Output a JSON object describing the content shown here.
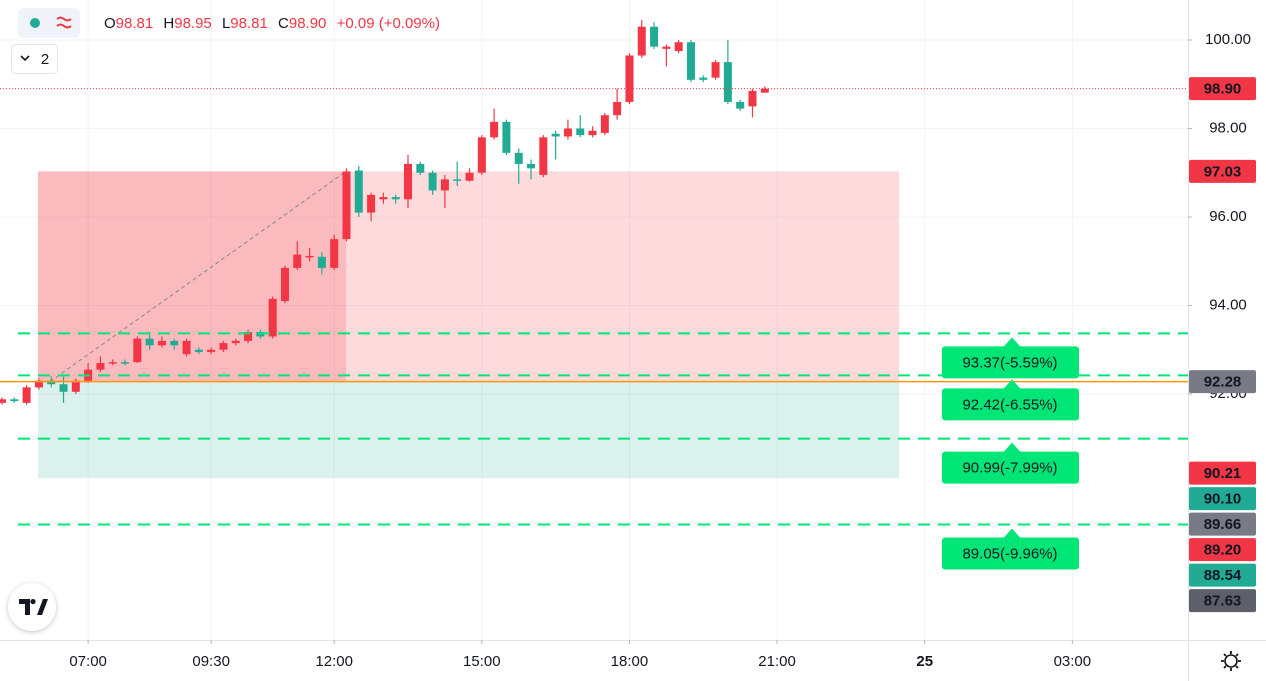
{
  "chart_data": {
    "type": "candlestick",
    "legend": {
      "o_label": "O",
      "o": "98.81",
      "h_label": "H",
      "h": "98.95",
      "l_label": "L",
      "l": "98.81",
      "c_label": "C",
      "c": "98.90",
      "change": "+0.09 (+0.09%)"
    },
    "badge": "2",
    "up_color": "#f23645",
    "down_color": "#22ab94",
    "open": [
      91.8,
      91.88,
      91.8,
      92.15,
      92.3,
      92.22,
      92.05,
      92.3,
      92.55,
      92.7,
      92.72,
      92.72,
      93.25,
      93.1,
      93.2,
      92.9,
      93.0,
      92.95,
      93.0,
      93.15,
      93.2,
      93.4,
      93.3,
      94.1,
      94.85,
      95.1,
      95.1,
      94.85,
      95.5,
      97.05,
      96.1,
      96.4,
      96.45,
      96.4,
      97.2,
      97.0,
      96.6,
      96.85,
      96.82,
      97.0,
      97.8,
      98.15,
      97.45,
      97.2,
      96.95,
      97.88,
      97.82,
      98.0,
      97.85,
      97.9,
      98.3,
      98.6,
      99.65,
      100.3,
      99.8,
      99.75,
      99.95,
      99.15,
      99.15,
      99.5,
      98.6,
      98.5,
      98.81
    ],
    "high": [
      91.92,
      91.92,
      92.2,
      92.35,
      92.4,
      92.4,
      92.35,
      92.7,
      92.85,
      92.78,
      92.78,
      93.3,
      93.4,
      93.3,
      93.25,
      93.25,
      93.05,
      93.05,
      93.2,
      93.25,
      93.45,
      93.45,
      94.2,
      94.9,
      95.45,
      95.3,
      95.2,
      95.6,
      97.1,
      97.15,
      96.55,
      96.55,
      96.5,
      97.4,
      97.25,
      97.05,
      96.95,
      97.25,
      97.1,
      97.85,
      98.45,
      98.2,
      97.55,
      97.3,
      97.85,
      97.95,
      98.2,
      98.3,
      98.05,
      98.35,
      98.9,
      99.7,
      100.45,
      100.4,
      99.9,
      100.0,
      100.0,
      99.2,
      99.55,
      100.0,
      98.65,
      98.9,
      98.95
    ],
    "low": [
      91.76,
      91.8,
      91.76,
      92.1,
      92.15,
      91.8,
      92.0,
      92.25,
      92.5,
      92.65,
      92.65,
      92.7,
      93.0,
      93.05,
      93.0,
      92.85,
      92.9,
      92.9,
      92.95,
      93.1,
      93.15,
      93.25,
      93.25,
      94.05,
      94.8,
      95.0,
      94.7,
      94.8,
      95.45,
      96.0,
      95.9,
      96.3,
      96.3,
      96.2,
      96.95,
      96.5,
      96.2,
      96.7,
      96.8,
      96.95,
      97.75,
      97.4,
      96.75,
      96.85,
      96.9,
      97.3,
      97.75,
      97.8,
      97.8,
      97.85,
      98.2,
      98.55,
      99.6,
      99.8,
      99.4,
      99.7,
      99.05,
      99.05,
      99.1,
      98.55,
      98.4,
      98.25,
      98.81
    ],
    "close": [
      91.88,
      91.84,
      92.15,
      92.3,
      92.22,
      92.05,
      92.3,
      92.55,
      92.7,
      92.72,
      92.7,
      93.25,
      93.1,
      93.2,
      93.1,
      93.2,
      92.95,
      93.0,
      93.15,
      93.2,
      93.4,
      93.3,
      94.15,
      94.85,
      95.15,
      95.12,
      94.85,
      95.5,
      97.03,
      96.1,
      96.5,
      96.45,
      96.4,
      97.2,
      97.0,
      96.6,
      96.85,
      96.82,
      97.0,
      97.8,
      98.15,
      97.45,
      97.2,
      97.1,
      97.8,
      97.82,
      98.0,
      97.85,
      97.95,
      98.3,
      98.6,
      99.65,
      100.3,
      99.85,
      99.85,
      99.95,
      99.1,
      99.1,
      99.5,
      98.6,
      98.45,
      98.85,
      98.9
    ],
    "xlim": [
      -0.163,
      96.4
    ],
    "xticks": [
      {
        "value": 7,
        "label": "07:00"
      },
      {
        "value": 17,
        "label": "09:30"
      },
      {
        "value": 27,
        "label": "12:00"
      },
      {
        "value": 39,
        "label": "15:00"
      },
      {
        "value": 51,
        "label": "18:00"
      },
      {
        "value": 63,
        "label": "21:00"
      },
      {
        "value": 75,
        "label": "25"
      },
      {
        "value": 87,
        "label": "03:00"
      }
    ],
    "ylim": [
      86.44,
      100.904
    ],
    "yticks": [
      {
        "value": 92,
        "label": "92.00"
      },
      {
        "value": 94,
        "label": "94.00"
      },
      {
        "value": 96,
        "label": "96.00"
      },
      {
        "value": 98,
        "label": "98.00"
      },
      {
        "value": 100,
        "label": "100.00"
      }
    ],
    "grid": true,
    "position": {
      "target": 97.03,
      "entry": 92.28,
      "stop": 90.1,
      "entry_color": "#ff9800"
    },
    "level_color": "#00e676",
    "levels": [
      {
        "value": 93.37,
        "label": "93.37(-5.59%)"
      },
      {
        "value": 92.42,
        "label": "92.42(-6.55%)"
      },
      {
        "value": 90.99,
        "label": "90.99(-7.99%)"
      },
      {
        "value": 89.05,
        "label": "89.05(-9.96%)"
      }
    ],
    "price_labels": [
      {
        "value": 98.9,
        "label": "98.90",
        "color": "#f23645"
      },
      {
        "value": 97.03,
        "label": "97.03",
        "color": "#f23645"
      },
      {
        "value": 92.28,
        "label": "92.28",
        "color": "#787b86"
      },
      {
        "value": 90.21,
        "label": "90.21",
        "color": "#f23645"
      },
      {
        "value": 90.1,
        "label": "90.10",
        "color": "#22ab94"
      },
      {
        "value": 89.66,
        "label": "89.66",
        "color": "#787b86"
      },
      {
        "value": 89.2,
        "label": "89.20",
        "color": "#f23645"
      },
      {
        "value": 88.54,
        "label": "88.54",
        "color": "#22ab94"
      },
      {
        "value": 87.63,
        "label": "87.63",
        "color": "#5d606b"
      }
    ]
  }
}
